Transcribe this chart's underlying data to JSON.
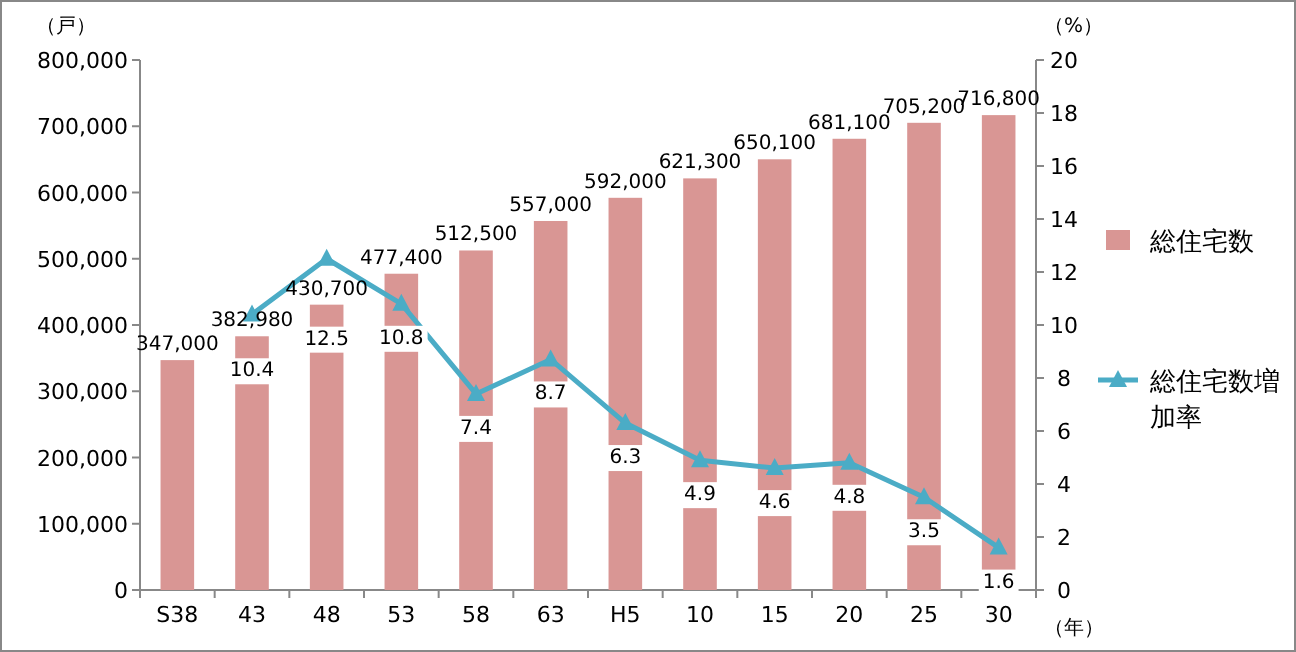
{
  "chart_data": {
    "type": "bar",
    "ylabel": "（戸）",
    "y2label": "（%）",
    "xlabel": "（年）",
    "categories": [
      "S38",
      "43",
      "48",
      "53",
      "58",
      "63",
      "H5",
      "10",
      "15",
      "20",
      "25",
      "30"
    ],
    "series": [
      {
        "name": "総住宅数",
        "color": "#d99694",
        "values": [
          347000,
          382980,
          430700,
          477400,
          512500,
          557000,
          592000,
          621300,
          650100,
          681100,
          705200,
          716800
        ],
        "value_labels": [
          "347,000",
          "382,980",
          "430,700",
          "477,400",
          "512,500",
          "557,000",
          "592,000",
          "621,300",
          "650,100",
          "681,100",
          "705,200",
          "716,800"
        ]
      },
      {
        "name": "総住宅数増加率",
        "type": "line",
        "axis": "y2",
        "color": "#4bacc6",
        "values": [
          null,
          10.4,
          12.5,
          10.8,
          7.4,
          8.7,
          6.3,
          4.9,
          4.6,
          4.8,
          3.5,
          1.6
        ],
        "value_labels": [
          null,
          "10.4",
          "12.5",
          "10.8",
          "7.4",
          "8.7",
          "6.3",
          "4.9",
          "4.6",
          "4.8",
          "3.5",
          "1.6"
        ]
      }
    ],
    "ylim": [
      0,
      800000
    ],
    "yticks": [
      {
        "value": 0,
        "label": "0"
      },
      {
        "value": 100000,
        "label": "100,000"
      },
      {
        "value": 200000,
        "label": "200,000"
      },
      {
        "value": 300000,
        "label": "300,000"
      },
      {
        "value": 400000,
        "label": "400,000"
      },
      {
        "value": 500000,
        "label": "500,000"
      },
      {
        "value": 600000,
        "label": "600,000"
      },
      {
        "value": 700000,
        "label": "700,000"
      },
      {
        "value": 800000,
        "label": "800,000"
      }
    ],
    "y2lim": [
      0,
      20
    ],
    "y2ticks": [
      0,
      2,
      4,
      6,
      8,
      10,
      12,
      14,
      16,
      18,
      20
    ],
    "marker": "triangle",
    "legend": "right",
    "grid": false
  }
}
